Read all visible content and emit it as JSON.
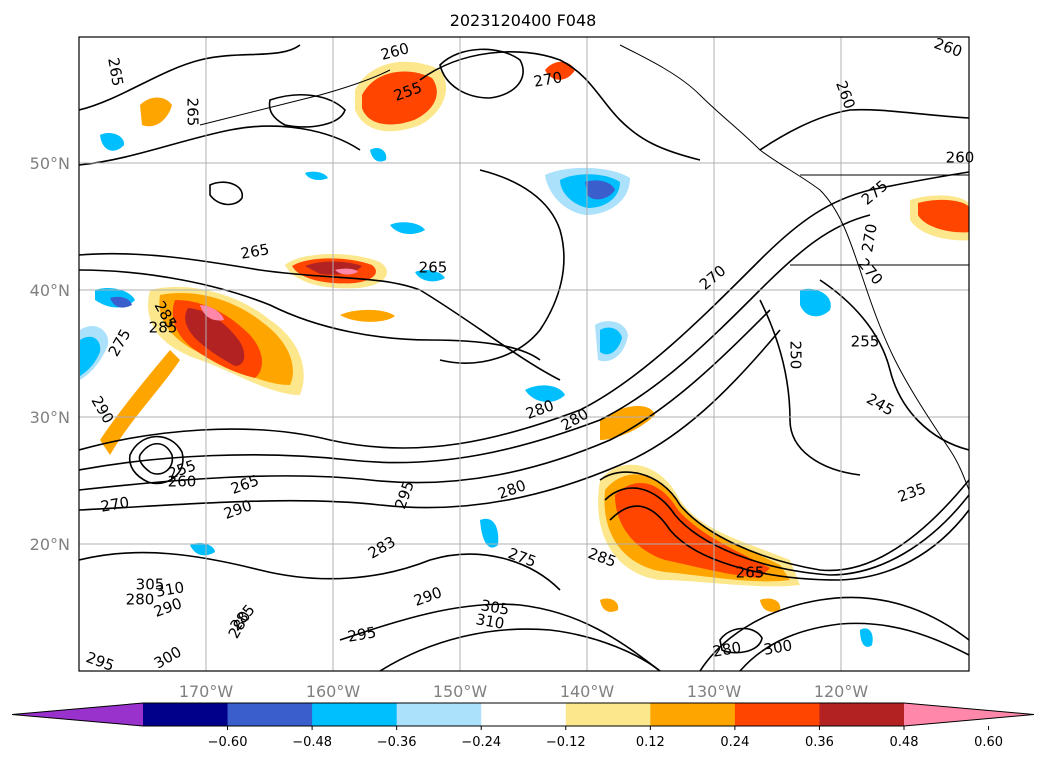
{
  "title": "2023120400 F048",
  "map": {
    "lat_labels": [
      "50°N",
      "40°N",
      "30°N",
      "20°N"
    ],
    "lon_labels": [
      "170°W",
      "160°W",
      "150°W",
      "140°W",
      "130°W",
      "120°W"
    ],
    "gridlines": true,
    "coastlines": true
  },
  "contour_labels": [
    "265",
    "265",
    "260",
    "270",
    "255",
    "260",
    "260",
    "260",
    "265",
    "265",
    "270",
    "275",
    "270",
    "270",
    "255",
    "250",
    "245",
    "235",
    "280",
    "280",
    "285",
    "275",
    "290",
    "295",
    "290",
    "270",
    "265",
    "260",
    "255",
    "285",
    "283",
    "275",
    "280",
    "285",
    "290",
    "305",
    "310",
    "295",
    "300",
    "280",
    "285",
    "290",
    "305",
    "310",
    "300",
    "280",
    "295",
    "265",
    "280"
  ],
  "colorbar": {
    "ticks": [
      "−0.60",
      "−0.48",
      "−0.36",
      "−0.24",
      "−0.12",
      "0.12",
      "0.24",
      "0.36",
      "0.48",
      "0.60"
    ],
    "colors": [
      "#9932cc",
      "#00008b",
      "#3a5fcd",
      "#00bfff",
      "#abe1fa",
      "#ffffff",
      "#fde78d",
      "#ffa500",
      "#ff4500",
      "#b22222",
      "#ff88aa"
    ],
    "extend": "both"
  }
}
